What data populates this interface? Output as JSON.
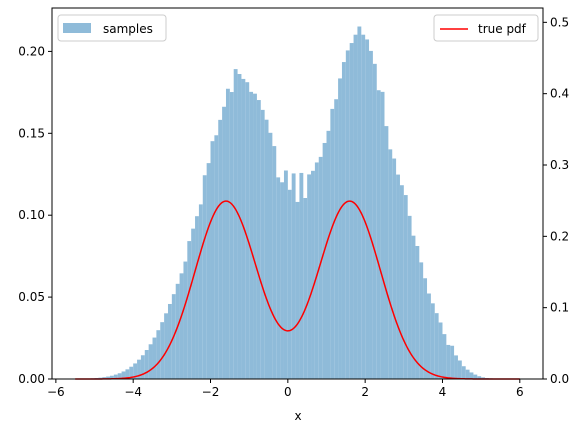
{
  "chart_data": {
    "type": "bar+line",
    "xlabel": "x",
    "ylabel_left": "",
    "ylabel_right": "",
    "xlim": [
      -6.1,
      6.6
    ],
    "ylim_left": [
      0,
      0.2265
    ],
    "ylim_right": [
      0,
      0.5201
    ],
    "x_ticks": [
      "-6",
      "-4",
      "-2",
      "0",
      "2",
      "4",
      "6"
    ],
    "y_ticks_left": [
      "0.00",
      "0.05",
      "0.10",
      "0.15",
      "0.20"
    ],
    "y_ticks_right": [
      "0.0",
      "0.1",
      "0.2",
      "0.3",
      "0.4",
      "0.5"
    ],
    "legend_left": {
      "label": "samples",
      "placement": "upper-left"
    },
    "legend_right": {
      "label": "true pdf",
      "placement": "upper-right"
    },
    "colors": {
      "bars": "#8fbbd9",
      "line": "#ff0000"
    },
    "histogram": {
      "name": "samples",
      "bin_start": -5.4,
      "bin_width": 0.1,
      "heights": [
        0.0002,
        0.0002,
        0.0003,
        0.0004,
        0.0006,
        0.0008,
        0.0011,
        0.0015,
        0.002,
        0.0027,
        0.0035,
        0.0046,
        0.0059,
        0.0075,
        0.0095,
        0.0118,
        0.0145,
        0.0177,
        0.0212,
        0.0253,
        0.0298,
        0.0347,
        0.0401,
        0.0458,
        0.0518,
        0.0581,
        0.0645,
        0.0717,
        0.0842,
        0.0918,
        0.0994,
        0.1066,
        0.1244,
        0.1318,
        0.1452,
        0.1488,
        0.1582,
        0.1662,
        0.1772,
        0.1752,
        0.1892,
        0.1862,
        0.1832,
        0.1812,
        0.1753,
        0.1742,
        0.1703,
        0.1643,
        0.1583,
        0.1503,
        0.1422,
        0.1231,
        0.1201,
        0.1273,
        0.1155,
        0.1255,
        0.1081,
        0.1258,
        0.1105,
        0.1249,
        0.1271,
        0.1322,
        0.1356,
        0.1441,
        0.1515,
        0.1649,
        0.1708,
        0.1835,
        0.1935,
        0.2006,
        0.2051,
        0.2102,
        0.2152,
        0.2102,
        0.2073,
        0.2003,
        0.1924,
        0.1763,
        0.1753,
        0.1544,
        0.1402,
        0.1346,
        0.1248,
        0.1183,
        0.1123,
        0.0996,
        0.0875,
        0.0812,
        0.0712,
        0.0615,
        0.0522,
        0.0462,
        0.0402,
        0.0345,
        0.0274,
        0.0208,
        0.0203,
        0.0144,
        0.0113,
        0.0078,
        0.0057,
        0.004,
        0.0027,
        0.0017,
        0.001,
        0.0006,
        0.0004,
        0.0002,
        0.0001
      ]
    },
    "pdf_line": {
      "name": "true pdf",
      "x_range": [
        -5.5,
        6.0
      ],
      "components": [
        {
          "weight": 0.5,
          "mean": -1.6,
          "sd": 0.8
        },
        {
          "weight": 0.5,
          "mean": 1.6,
          "sd": 0.8
        }
      ]
    }
  }
}
